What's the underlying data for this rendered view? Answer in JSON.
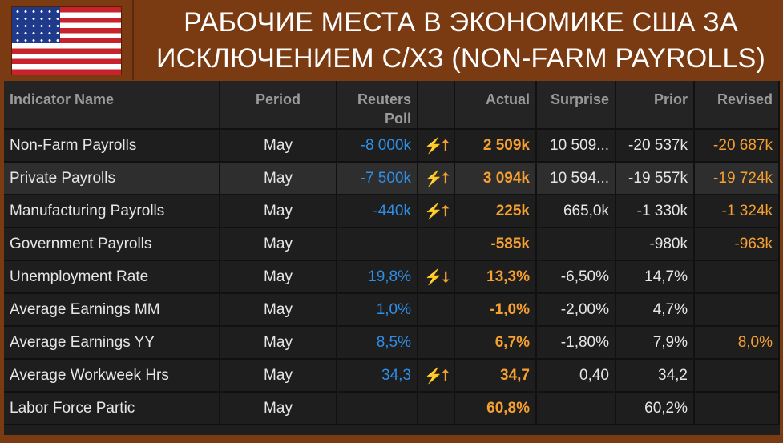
{
  "header": {
    "title_line1": "РАБОЧИЕ МЕСТА В ЭКОНОМИКЕ США ЗА",
    "title_line2": "ИСКЛЮЧЕНИЕМ С/ХЗ (NON-FARM PAYROLLS)",
    "flag_icon": "us-flag-icon"
  },
  "colors": {
    "background": "#7a3a12",
    "panel": "#1e1e1e",
    "poll": "#2f8ee8",
    "actual": "#f5a030"
  },
  "columns": {
    "indicator": "Indicator Name",
    "period": "Period",
    "poll_line1": "Reuters",
    "poll_line2": "Poll",
    "actual": "Actual",
    "surprise": "Surprise",
    "prior": "Prior",
    "revised": "Revised"
  },
  "rows": [
    {
      "name": "Non-Farm Payrolls",
      "period": "May",
      "poll": "-8 000k",
      "icon": "⚡⭡",
      "actual": "2 509k",
      "surprise": "10 509...",
      "prior": "-20 537k",
      "revised": "-20 687k"
    },
    {
      "name": "Private Payrolls",
      "period": "May",
      "poll": "-7 500k",
      "icon": "⚡⭡",
      "actual": "3 094k",
      "surprise": "10 594...",
      "prior": "-19 557k",
      "revised": "-19 724k"
    },
    {
      "name": "Manufacturing Payrolls",
      "period": "May",
      "poll": "-440k",
      "icon": "⚡⭡",
      "actual": "225k",
      "surprise": "665,0k",
      "prior": "-1 330k",
      "revised": "-1 324k"
    },
    {
      "name": "Government Payrolls",
      "period": "May",
      "poll": "",
      "icon": "",
      "actual": "-585k",
      "surprise": "",
      "prior": "-980k",
      "revised": "-963k"
    },
    {
      "name": "Unemployment Rate",
      "period": "May",
      "poll": "19,8%",
      "icon": "⚡⭣",
      "actual": "13,3%",
      "surprise": "-6,50%",
      "prior": "14,7%",
      "revised": ""
    },
    {
      "name": "Average Earnings MM",
      "period": "May",
      "poll": "1,0%",
      "icon": "",
      "actual": "-1,0%",
      "surprise": "-2,00%",
      "prior": "4,7%",
      "revised": ""
    },
    {
      "name": "Average Earnings YY",
      "period": "May",
      "poll": "8,5%",
      "icon": "",
      "actual": "6,7%",
      "surprise": "-1,80%",
      "prior": "7,9%",
      "revised": "8,0%"
    },
    {
      "name": "Average Workweek Hrs",
      "period": "May",
      "poll": "34,3",
      "icon": "⚡⭡",
      "actual": "34,7",
      "surprise": "0,40",
      "prior": "34,2",
      "revised": ""
    },
    {
      "name": "Labor Force Partic",
      "period": "May",
      "poll": "",
      "icon": "",
      "actual": "60,8%",
      "surprise": "",
      "prior": "60,2%",
      "revised": ""
    }
  ]
}
